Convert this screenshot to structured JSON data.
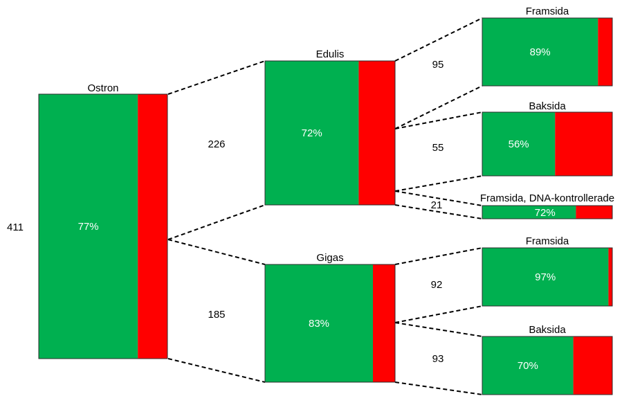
{
  "colors": {
    "green": "#00b050",
    "red": "#ff0000"
  },
  "root_count": "411",
  "nodes": [
    {
      "id": "ostron",
      "title": "Ostron",
      "pct_label": "77%",
      "share": 0.77
    },
    {
      "id": "edulis",
      "title": "Edulis",
      "pct_label": "72%",
      "share": 0.72
    },
    {
      "id": "gigas",
      "title": "Gigas",
      "pct_label": "83%",
      "share": 0.83
    },
    {
      "id": "edulis-framsida",
      "title": "Framsida",
      "pct_label": "89%",
      "share": 0.89
    },
    {
      "id": "edulis-baksida",
      "title": "Baksida",
      "pct_label": "56%",
      "share": 0.56
    },
    {
      "id": "edulis-dna",
      "title": "Framsida, DNA-kontrollerade",
      "pct_label": "72%",
      "share": 0.72
    },
    {
      "id": "gigas-framsida",
      "title": "Framsida",
      "pct_label": "97%",
      "share": 0.97
    },
    {
      "id": "gigas-baksida",
      "title": "Baksida",
      "pct_label": "70%",
      "share": 0.7
    }
  ],
  "links": [
    {
      "from": "ostron",
      "to": "edulis",
      "count": "226"
    },
    {
      "from": "ostron",
      "to": "gigas",
      "count": "185"
    },
    {
      "from": "edulis",
      "to": "edulis-framsida",
      "count": "95"
    },
    {
      "from": "edulis",
      "to": "edulis-baksida",
      "count": "55"
    },
    {
      "from": "edulis",
      "to": "edulis-dna",
      "count": "21"
    },
    {
      "from": "gigas",
      "to": "gigas-framsida",
      "count": "92"
    },
    {
      "from": "gigas",
      "to": "gigas-baksida",
      "count": "93"
    }
  ]
}
